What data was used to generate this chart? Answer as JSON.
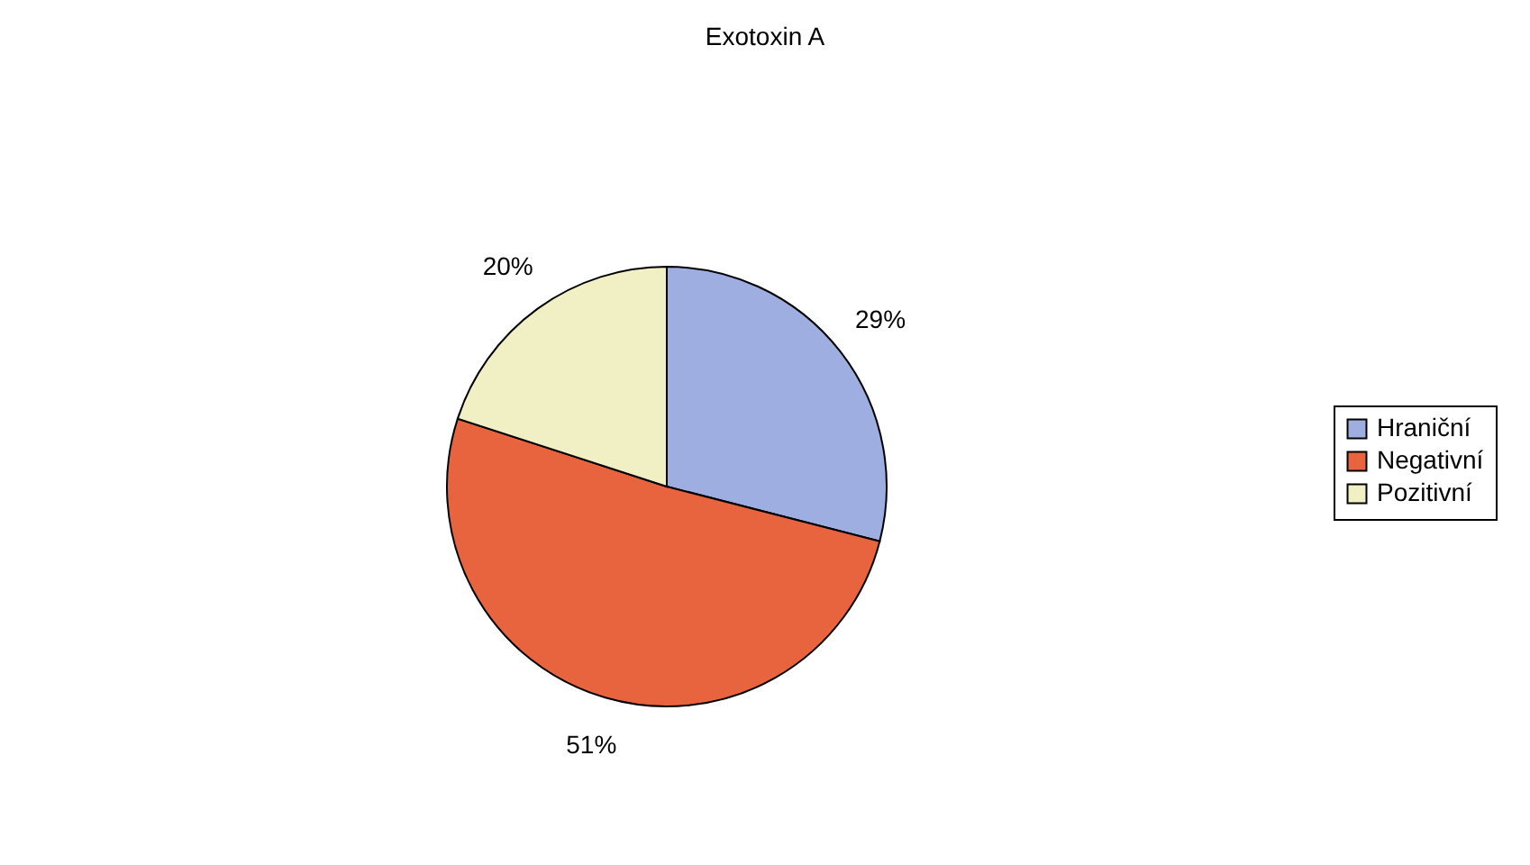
{
  "chart_data": {
    "type": "pie",
    "title": "Exotoxin A",
    "categories": [
      "Hraniční",
      "Negativní",
      "Pozitivní"
    ],
    "values": [
      29,
      51,
      20
    ],
    "value_labels": [
      "29%",
      "51%",
      "20%"
    ],
    "colors": [
      "#9eaee0",
      "#e8643f",
      "#f1efc4"
    ],
    "legend": "right"
  }
}
